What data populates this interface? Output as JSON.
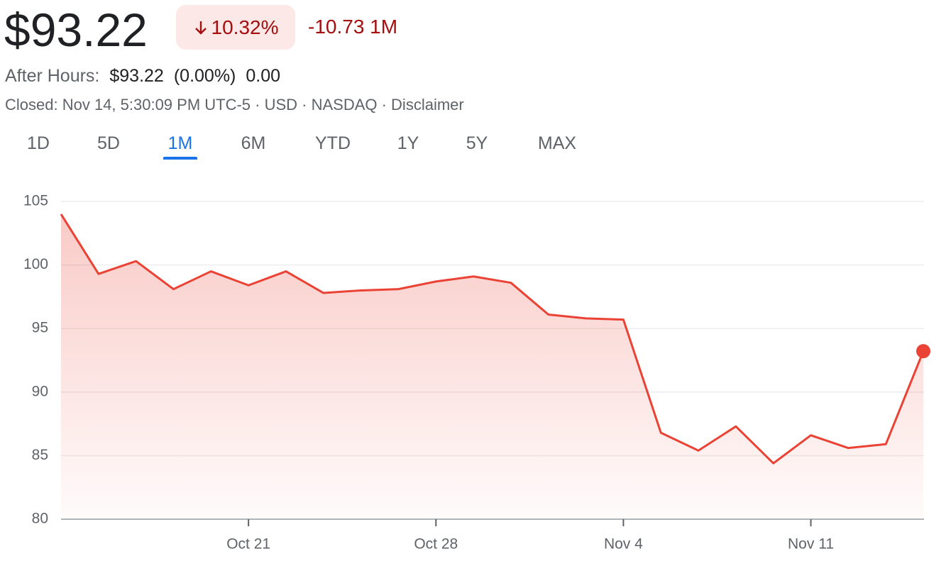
{
  "header": {
    "price": "$93.22",
    "change_percent": "10.32%",
    "change": "-10.73 1M",
    "after_hours_label": "After Hours:",
    "after_hours_price": "$93.22",
    "after_hours_percent": "(0.00%)",
    "after_hours_change": "0.00",
    "status": "Closed: Nov 14, 5:30:09 PM UTC-5 · USD · NASDAQ · Disclaimer"
  },
  "tabs": {
    "items": [
      "1D",
      "5D",
      "1M",
      "6M",
      "YTD",
      "1Y",
      "5Y",
      "MAX"
    ],
    "active": 2
  },
  "chart_data": {
    "type": "line",
    "color": "#ea4335",
    "grid": true,
    "categories": [
      null,
      null,
      null,
      null,
      null,
      "Oct 21",
      null,
      null,
      null,
      null,
      "Oct 28",
      null,
      null,
      null,
      null,
      "Nov 4",
      null,
      null,
      null,
      null,
      "Nov 11",
      null,
      null,
      null
    ],
    "values": [
      104.0,
      99.3,
      100.3,
      98.1,
      99.5,
      98.4,
      99.5,
      97.8,
      98.0,
      98.1,
      98.7,
      99.1,
      98.6,
      96.1,
      95.8,
      95.7,
      86.8,
      85.4,
      87.3,
      84.4,
      86.6,
      85.6,
      85.9,
      93.22
    ],
    "ylim": [
      80,
      105
    ],
    "yticks": [
      80,
      85,
      90,
      95,
      100,
      105
    ]
  }
}
